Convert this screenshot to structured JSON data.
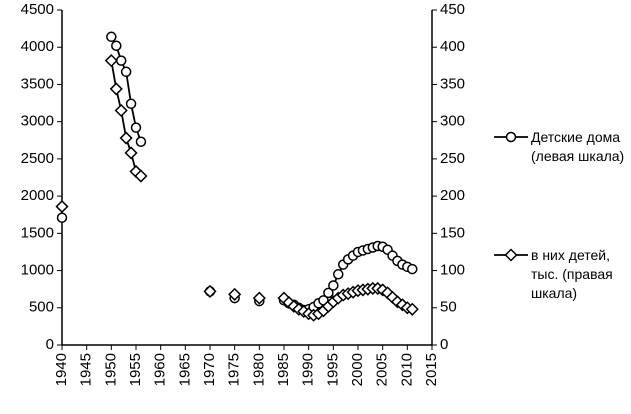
{
  "chart_data": {
    "type": "line",
    "x": [
      1940,
      1950,
      1951,
      1952,
      1953,
      1954,
      1955,
      1956,
      1970,
      1975,
      1980,
      1985,
      1986,
      1987,
      1988,
      1989,
      1990,
      1991,
      1992,
      1993,
      1994,
      1995,
      1996,
      1997,
      1998,
      1999,
      2000,
      2001,
      2002,
      2003,
      2004,
      2005,
      2006,
      2007,
      2008,
      2009,
      2010,
      2011
    ],
    "series": [
      {
        "name": "Детские дома (левая шкала)",
        "color": "#000000",
        "marker": "circle",
        "values": [
          1710,
          4140,
          4020,
          3820,
          3670,
          3240,
          2920,
          2730,
          720,
          630,
          590,
          600,
          560,
          540,
          500,
          470,
          480,
          510,
          560,
          600,
          700,
          800,
          950,
          1080,
          1150,
          1200,
          1250,
          1270,
          1290,
          1310,
          1330,
          1320,
          1280,
          1200,
          1130,
          1080,
          1050,
          1020
        ]
      },
      {
        "name": "в них детей, тыс. (правая шкала)",
        "color": "#000000",
        "marker": "diamond",
        "axis": "y2",
        "values": [
          186,
          382,
          344,
          315,
          278,
          258,
          233,
          227,
          72,
          68,
          63,
          63,
          57,
          52,
          48,
          45,
          42,
          40,
          42,
          46,
          52,
          58,
          63,
          67,
          69,
          71,
          73,
          74,
          75,
          76,
          76,
          74,
          70,
          64,
          58,
          54,
          50,
          48
        ]
      }
    ],
    "xlim": [
      1940,
      2015
    ],
    "xticks": [
      1940,
      1945,
      1950,
      1955,
      1960,
      1965,
      1970,
      1975,
      1980,
      1985,
      1990,
      1995,
      2000,
      2005,
      2010,
      2015
    ],
    "ylim": [
      0,
      4500
    ],
    "yticks": [
      0,
      500,
      1000,
      1500,
      2000,
      2500,
      3000,
      3500,
      4000,
      4500
    ],
    "y2lim": [
      0,
      450
    ],
    "y2ticks": [
      0,
      50,
      100,
      150,
      200,
      250,
      300,
      350,
      400,
      450
    ],
    "grid": false
  }
}
